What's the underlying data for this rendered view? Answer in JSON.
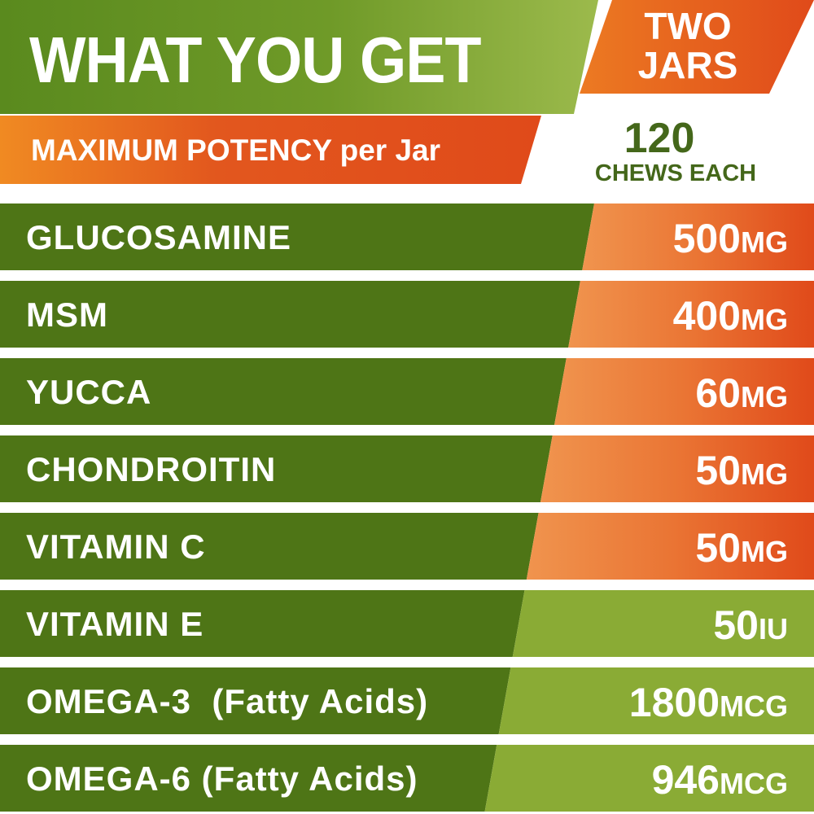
{
  "header": {
    "title": "WHAT YOU GET",
    "subtitle": "MAXIMUM POTENCY per Jar",
    "jars_line1": "TWO",
    "jars_line2": "JARS",
    "count": "120",
    "count_label": "CHEWS EACH"
  },
  "colors": {
    "dark_green": "#4e7516",
    "light_green": "#8aab35",
    "orange": "#e04a1a",
    "light_orange": "#f0924e",
    "text_green": "#44671a"
  },
  "ingredients": [
    {
      "name": "GLUCOSAMINE",
      "amount": "500",
      "unit": "MG"
    },
    {
      "name": "MSM",
      "amount": "400",
      "unit": "MG"
    },
    {
      "name": "YUCCA",
      "amount": "60",
      "unit": "MG"
    },
    {
      "name": "CHONDROITIN",
      "amount": "50",
      "unit": "MG"
    },
    {
      "name": "VITAMIN C",
      "amount": "50",
      "unit": "MG"
    },
    {
      "name": "VITAMIN E",
      "amount": "50",
      "unit": "IU"
    },
    {
      "name": "OMEGA-3  (Fatty Acids)",
      "amount": "1800",
      "unit": "MCG"
    },
    {
      "name": "OMEGA-6 (Fatty Acids)",
      "amount": "946",
      "unit": "MCG"
    }
  ]
}
